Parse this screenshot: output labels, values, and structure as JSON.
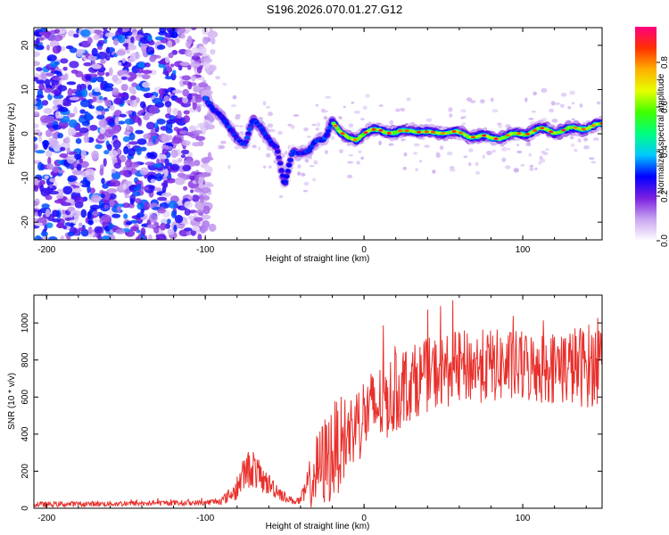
{
  "title": "S196.2026.070.01.27.G12",
  "chart_data": [
    {
      "type": "heatmap",
      "name": "spectrogram",
      "xlabel": "Height of straight line (km)",
      "ylabel": "Frequency (Hz)",
      "xlim": [
        -208,
        150
      ],
      "ylim": [
        -24,
        24
      ],
      "xticks": [
        -200,
        -100,
        0,
        100
      ],
      "yticks": [
        -20,
        -10,
        0,
        10,
        20
      ],
      "ridge": {
        "x": [
          -100,
          -95,
          -90,
          -85,
          -80,
          -75,
          -70,
          -65,
          -60,
          -55,
          -50,
          -45,
          -40,
          -35,
          -30,
          -25,
          -20,
          -15,
          -10,
          -5,
          0,
          10,
          20,
          30,
          40,
          50,
          60,
          70,
          80,
          90,
          100,
          110,
          120,
          130,
          140,
          150
        ],
        "y": [
          8,
          6,
          4,
          1,
          -1,
          -2,
          3,
          1,
          -1,
          -3,
          -12,
          -4,
          -4,
          -4,
          -2,
          -1,
          3,
          0,
          -1,
          -1,
          0,
          1,
          0,
          1,
          0,
          0.5,
          0,
          -0.5,
          -1,
          -0.5,
          0,
          1,
          0.5,
          1,
          1.5,
          2
        ]
      },
      "colorbar": {
        "label": "Normalized spectral amplitude",
        "ticks": [
          0.0,
          0.2,
          0.4,
          0.6,
          0.8
        ],
        "tick_labels": [
          "0.0",
          "0.2",
          "0.4",
          "0.6",
          "0.8"
        ],
        "range": [
          0,
          0.96
        ],
        "colors": [
          "#ffffff",
          "#c9a6f0",
          "#7a1fe0",
          "#0000ff",
          "#00c8ff",
          "#00ff80",
          "#40ff00",
          "#e6ff00",
          "#ffb000",
          "#ff3000",
          "#ff0080"
        ]
      }
    },
    {
      "type": "line",
      "name": "snr",
      "xlabel": "Height of straight line (km)",
      "ylabel": "SNR (10 * v/v)",
      "xlim": [
        -208,
        150
      ],
      "ylim": [
        0,
        1150
      ],
      "xticks": [
        -200,
        -100,
        0,
        100
      ],
      "yticks": [
        0,
        200,
        400,
        600,
        800,
        1000
      ],
      "line_color": "#e8302c",
      "envelope": {
        "x": [
          -208,
          -100,
          -90,
          -80,
          -75,
          -70,
          -65,
          -60,
          -55,
          -50,
          -45,
          -40,
          -35,
          -30,
          -25,
          -20,
          -10,
          0,
          10,
          20,
          30,
          40,
          60,
          80,
          100,
          120,
          140,
          150
        ],
        "mean": [
          20,
          30,
          40,
          100,
          200,
          220,
          160,
          130,
          100,
          60,
          40,
          40,
          120,
          200,
          250,
          300,
          400,
          500,
          560,
          620,
          680,
          720,
          760,
          770,
          760,
          760,
          770,
          780
        ],
        "amplitude": [
          15,
          15,
          20,
          60,
          100,
          110,
          80,
          60,
          50,
          30,
          20,
          25,
          120,
          200,
          250,
          280,
          220,
          220,
          220,
          220,
          200,
          200,
          200,
          200,
          200,
          200,
          230,
          230
        ]
      }
    }
  ]
}
